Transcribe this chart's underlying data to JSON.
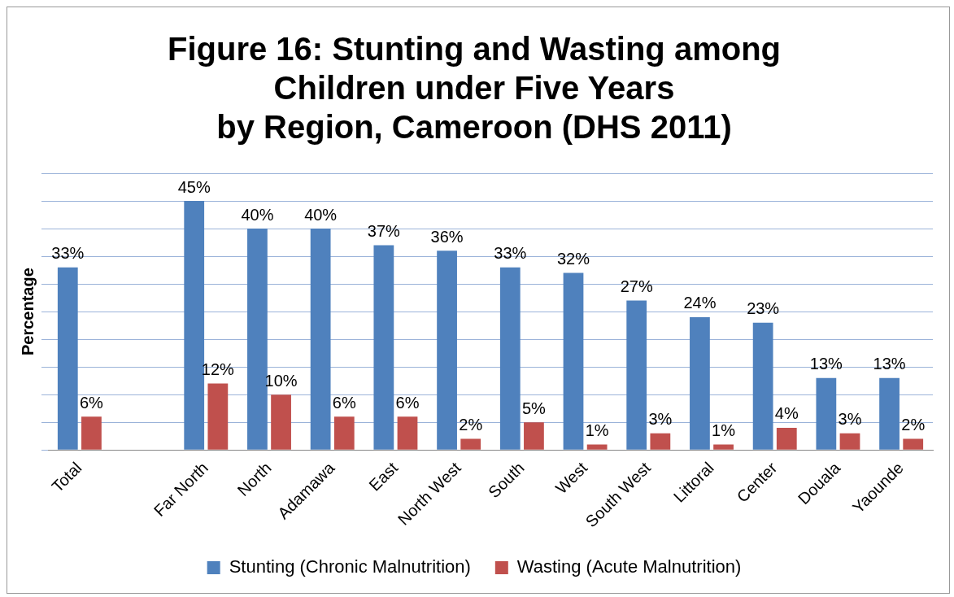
{
  "chart_data": {
    "type": "bar",
    "title": "Figure 16: Stunting and Wasting among\nChildren under Five Years\nby Region, Cameroon (DHS 2011)",
    "ylabel": "Percentage",
    "categories": [
      "Total",
      null,
      "Far North",
      "North",
      "Adamawa",
      "East",
      "North West",
      "South",
      "West",
      "South West",
      "Littoral",
      "Center",
      "Douala",
      "Yaounde"
    ],
    "series": [
      {
        "name": "Stunting (Chronic Malnutrition)",
        "color": "#4f81bd",
        "values": [
          33,
          null,
          45,
          40,
          40,
          37,
          36,
          33,
          32,
          27,
          24,
          23,
          13,
          13
        ],
        "value_labels": [
          "33%",
          null,
          "45%",
          "40%",
          "40%",
          "37%",
          "36%",
          "33%",
          "32%",
          "27%",
          "24%",
          "23%",
          "13%",
          "13%"
        ]
      },
      {
        "name": "Wasting (Acute Malnutrition)",
        "color": "#c0504d",
        "values": [
          6,
          null,
          12,
          10,
          6,
          6,
          2,
          5,
          1,
          3,
          1,
          4,
          3,
          2
        ],
        "value_labels": [
          "6%",
          null,
          "12%",
          "10%",
          "6%",
          "6%",
          "2%",
          "5%",
          "1%",
          "3%",
          "1%",
          "4%",
          "3%",
          "2%"
        ]
      }
    ],
    "ylim": [
      0,
      50
    ],
    "yticks": [
      {
        "value": 0,
        "label": null
      },
      {
        "value": 5,
        "label": null
      },
      {
        "value": 10,
        "label": null
      },
      {
        "value": 15,
        "label": null
      },
      {
        "value": 20,
        "label": null
      },
      {
        "value": 25,
        "label": null
      },
      {
        "value": 30,
        "label": null
      },
      {
        "value": 35,
        "label": null
      },
      {
        "value": 40,
        "label": null
      },
      {
        "value": 45,
        "label": null
      },
      {
        "value": 50,
        "label": null
      }
    ],
    "grid": "y",
    "legend": "bottom",
    "tick_labels": "x"
  }
}
